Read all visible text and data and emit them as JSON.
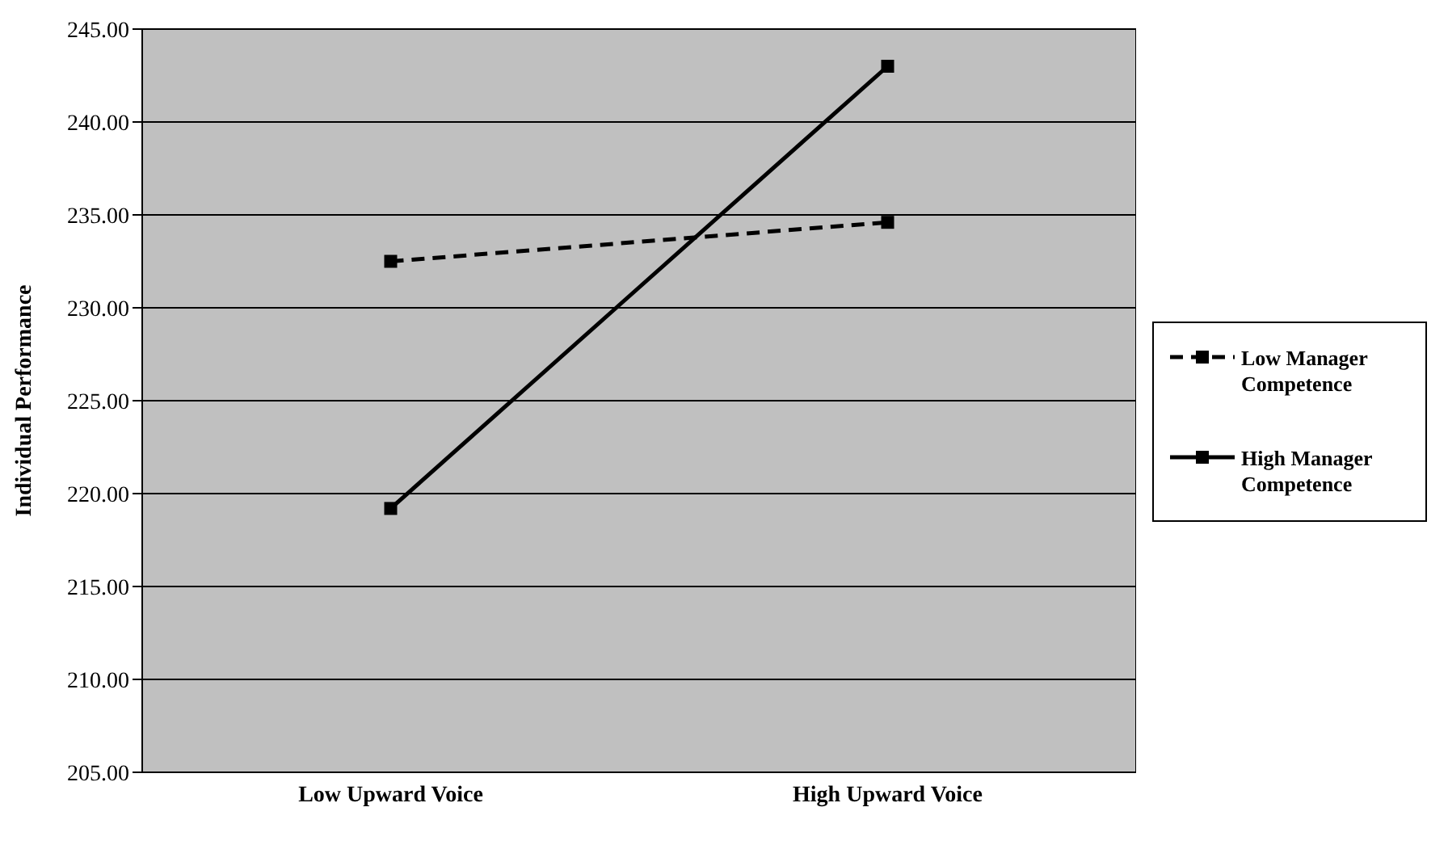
{
  "chart_data": {
    "type": "line",
    "ylabel": "Individual Performance",
    "categories": [
      "Low Upward Voice",
      "High Upward Voice"
    ],
    "series": [
      {
        "name": "Low Manager Competence",
        "color": "#000000",
        "values": [
          232.5,
          234.6
        ],
        "line_style": "dashed"
      },
      {
        "name": "High Manager Competence",
        "color": "#000000",
        "values": [
          219.2,
          243.0
        ],
        "line_style": "solid"
      }
    ],
    "ylim": [
      205,
      245
    ],
    "yticks": [
      {
        "value": 205,
        "label": "205.00"
      },
      {
        "value": 210,
        "label": "210.00"
      },
      {
        "value": 215,
        "label": "215.00"
      },
      {
        "value": 220,
        "label": "220.00"
      },
      {
        "value": 225,
        "label": "225.00"
      },
      {
        "value": 230,
        "label": "230.00"
      },
      {
        "value": 235,
        "label": "235.00"
      },
      {
        "value": 240,
        "label": "240.00"
      },
      {
        "value": 245,
        "label": "245.00"
      }
    ],
    "grid": "y",
    "legend": "right",
    "marker": "square"
  }
}
